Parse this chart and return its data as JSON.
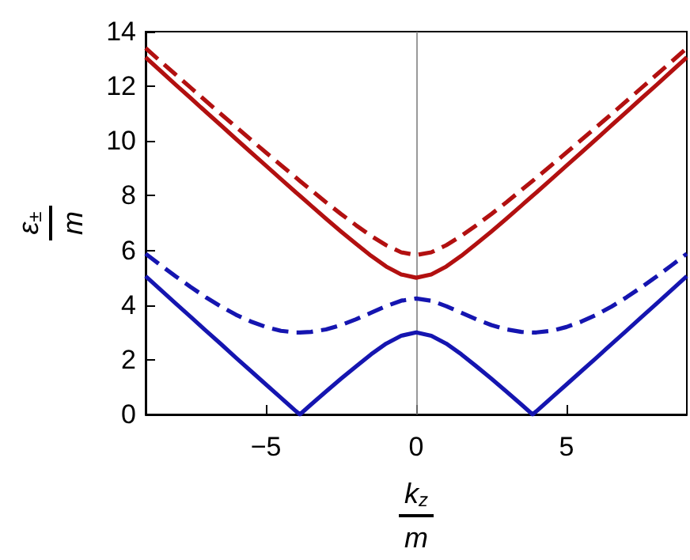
{
  "chart_data": {
    "type": "line",
    "xlabel": "k$_{z}$\nm",
    "ylabel": "ε$_{±}$\nm",
    "x": [
      -9,
      -8.5,
      -8,
      -7.5,
      -7,
      -6.5,
      -6,
      -5.5,
      -5,
      -4.5,
      -4,
      -3.87,
      -3.5,
      -3,
      -2.5,
      -2,
      -1.5,
      -1,
      -0.5,
      0,
      0.5,
      1,
      1.5,
      2,
      2.5,
      3,
      3.5,
      3.87,
      4,
      4.5,
      5,
      5.5,
      6,
      6.5,
      7,
      7.5,
      8,
      8.5,
      9
    ],
    "xlim": [
      -9,
      9
    ],
    "xticks": [
      -5,
      0,
      5
    ],
    "ylim": [
      0,
      14
    ],
    "yticks": [
      0,
      2,
      4,
      6,
      8,
      10,
      12,
      14
    ],
    "grid": false,
    "marker": "none",
    "ref_lines": [
      {
        "axis": "x",
        "value": 0,
        "color": "#808080"
      }
    ],
    "series": [
      {
        "color": "#b21010",
        "line_style": "solid",
        "values": [
          13.06,
          12.56,
          12.06,
          11.57,
          11.07,
          10.58,
          10.08,
          9.59,
          9.1,
          8.61,
          8.12,
          8,
          7.64,
          7.16,
          6.69,
          6.24,
          5.8,
          5.41,
          5.12,
          5,
          5.12,
          5.41,
          5.8,
          6.24,
          6.69,
          7.16,
          7.64,
          8,
          8.12,
          8.61,
          9.1,
          9.59,
          10.08,
          10.58,
          11.07,
          11.57,
          12.06,
          12.56,
          13.06
        ]
      },
      {
        "color": "#b21010",
        "line_style": "dashed",
        "values": [
          13.4,
          12.91,
          12.43,
          11.95,
          11.47,
          10.99,
          10.52,
          10.05,
          9.58,
          9.12,
          8.66,
          8.54,
          8.21,
          7.76,
          7.33,
          6.92,
          6.53,
          6.19,
          5.93,
          5.83,
          5.93,
          6.19,
          6.53,
          6.92,
          7.33,
          7.76,
          8.21,
          8.54,
          8.66,
          9.12,
          9.58,
          10.05,
          10.52,
          10.99,
          11.47,
          11.95,
          12.43,
          12.91,
          13.4
        ]
      },
      {
        "color": "#1515b0",
        "line_style": "solid",
        "values": [
          5.06,
          4.56,
          4.06,
          3.57,
          3.07,
          2.58,
          2.08,
          1.59,
          1.1,
          0.61,
          0.12,
          0,
          0.36,
          0.84,
          1.31,
          1.76,
          2.2,
          2.59,
          2.88,
          3,
          2.88,
          2.59,
          2.2,
          1.76,
          1.31,
          0.84,
          0.36,
          0,
          0.12,
          0.61,
          1.1,
          1.59,
          2.08,
          2.58,
          3.07,
          3.57,
          4.06,
          4.56,
          5.06
        ]
      },
      {
        "color": "#1515b0",
        "line_style": "dashed",
        "values": [
          5.88,
          5.46,
          5.05,
          4.66,
          4.29,
          3.95,
          3.65,
          3.4,
          3.2,
          3.06,
          3,
          3,
          3.02,
          3.11,
          3.27,
          3.48,
          3.72,
          3.96,
          4.16,
          4.24,
          4.16,
          3.96,
          3.72,
          3.48,
          3.27,
          3.11,
          3.02,
          3,
          3,
          3.06,
          3.2,
          3.4,
          3.65,
          3.95,
          4.29,
          4.66,
          5.05,
          5.46,
          5.88
        ]
      }
    ]
  }
}
